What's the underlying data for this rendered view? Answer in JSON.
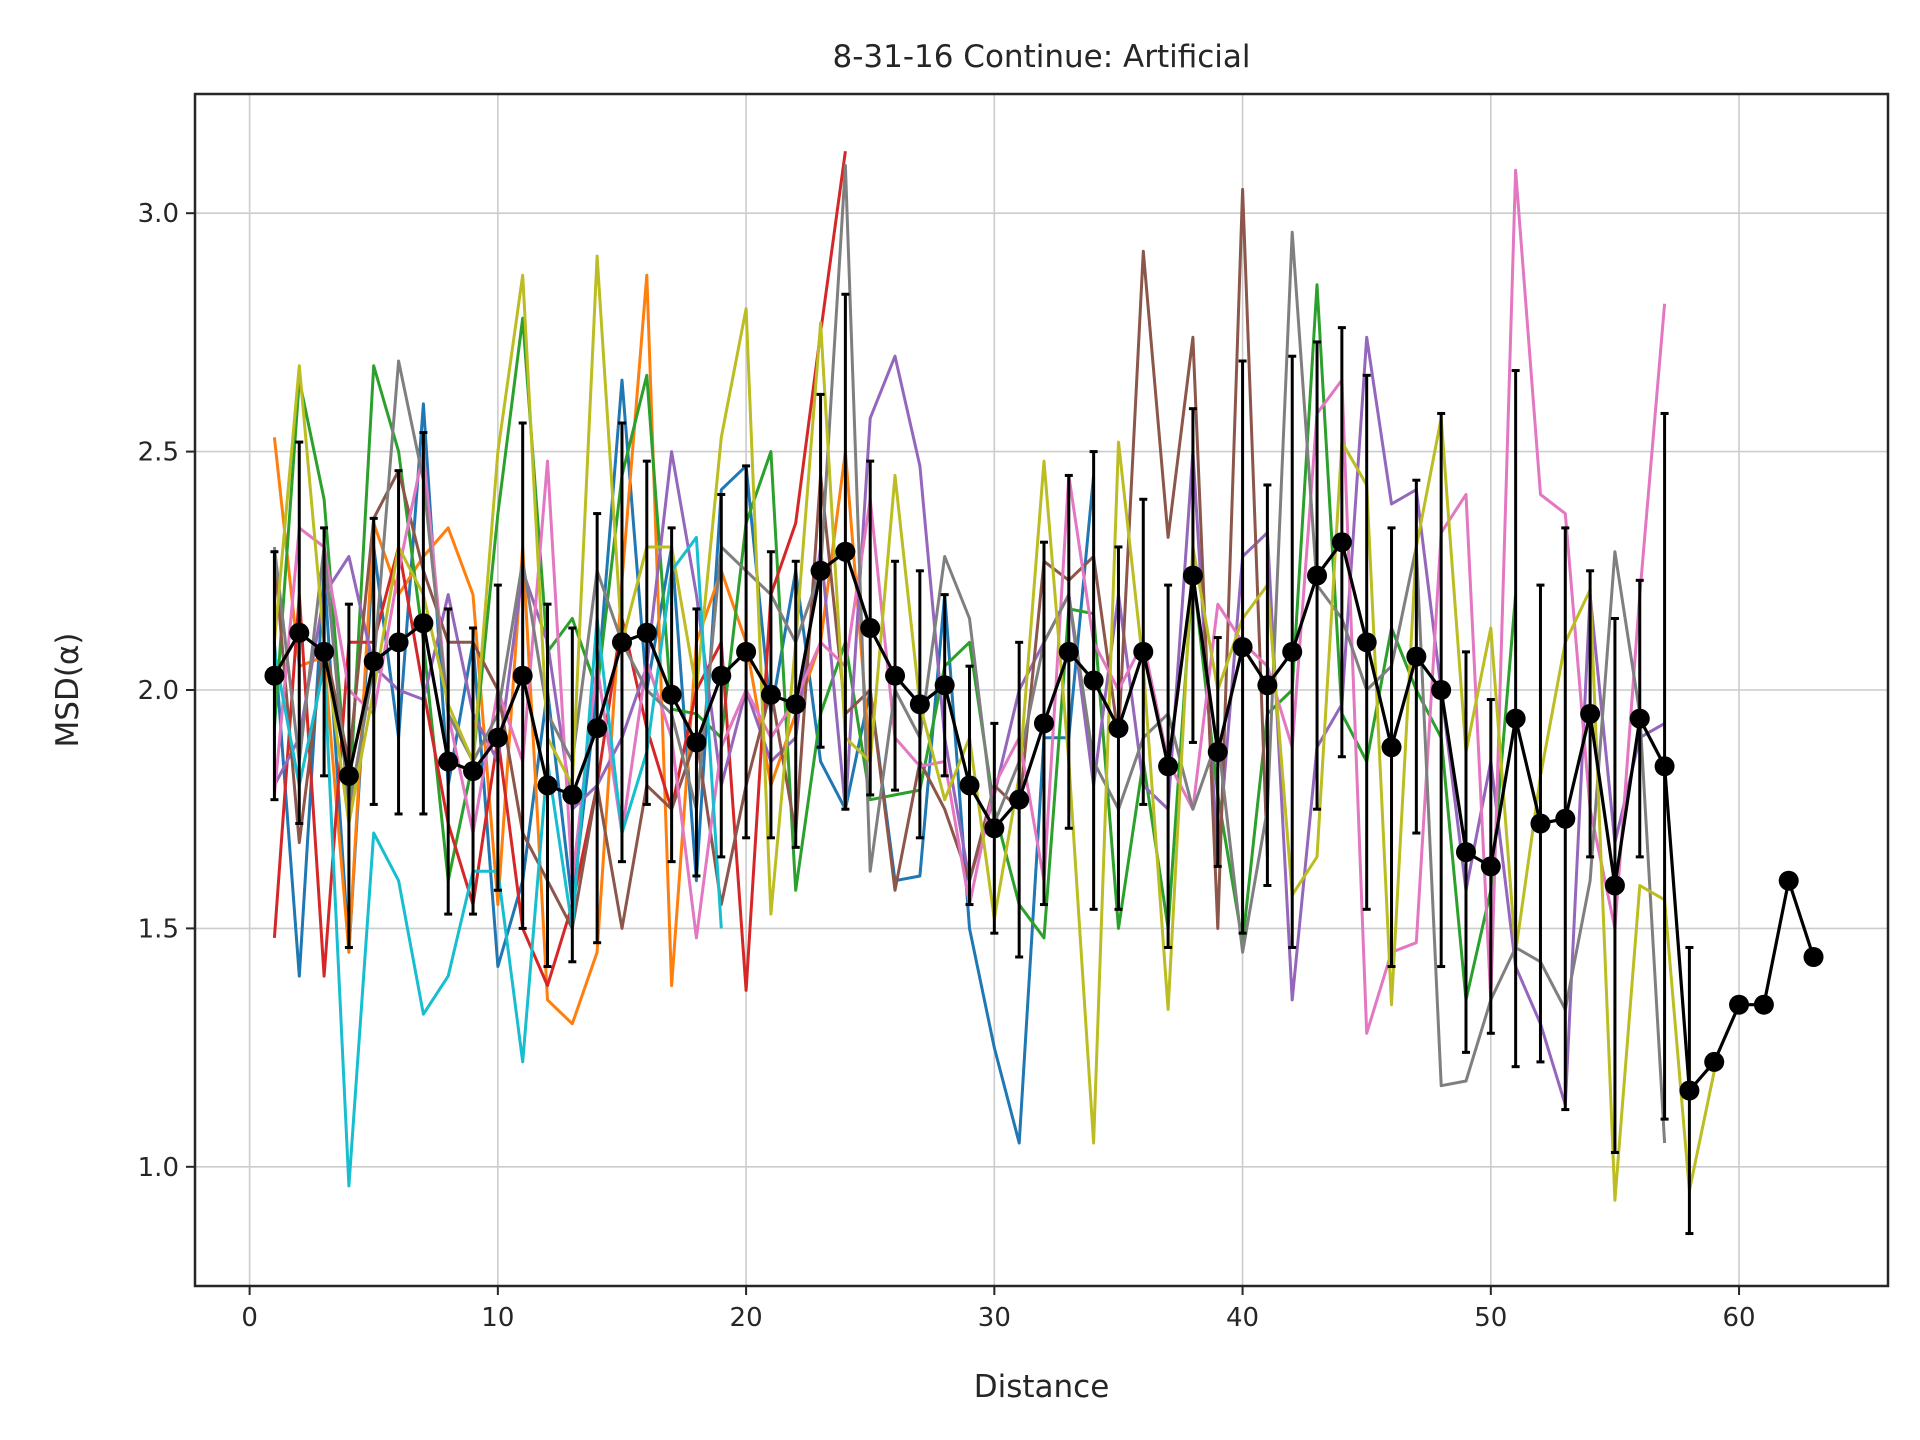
{
  "chart_data": {
    "type": "line",
    "title": "8-31-16 Continue: Artificial",
    "xlabel": "Distance",
    "ylabel": "MSD(α)",
    "xlim": [
      -2.2,
      66
    ],
    "ylim": [
      0.75,
      3.25
    ],
    "xticks": [
      0,
      10,
      20,
      30,
      40,
      50,
      60
    ],
    "xtick_labels": [
      "0",
      "10",
      "20",
      "30",
      "40",
      "50",
      "60"
    ],
    "yticks": [
      1.0,
      1.5,
      2.0,
      2.5,
      3.0
    ],
    "ytick_labels": [
      "1.0",
      "1.5",
      "2.0",
      "2.5",
      "3.0"
    ],
    "grid": true,
    "legend": "none",
    "series": [
      {
        "color": "#1f77b4",
        "x": [
          1,
          2,
          3,
          4,
          5,
          6,
          7,
          8,
          9,
          10,
          11,
          12,
          13,
          14,
          15,
          16,
          17,
          18,
          19,
          20,
          21,
          22,
          23,
          24,
          25,
          26,
          27,
          28,
          29,
          30,
          31,
          32,
          33,
          34
        ],
        "y": [
          2.1,
          1.4,
          2.25,
          1.45,
          2.3,
          1.9,
          2.6,
          1.8,
          2.1,
          1.42,
          1.6,
          2.0,
          1.55,
          2.0,
          2.65,
          2.0,
          2.3,
          1.6,
          2.42,
          2.47,
          1.95,
          2.25,
          1.85,
          1.75,
          2.0,
          1.6,
          1.61,
          2.2,
          1.5,
          1.25,
          1.05,
          1.9,
          1.9,
          2.45
        ]
      },
      {
        "color": "#ff7f0e",
        "x": [
          1,
          2,
          3,
          4,
          5,
          6,
          7,
          8,
          9,
          10,
          11,
          12,
          13,
          14,
          15,
          16,
          17,
          18,
          19,
          20,
          21,
          22,
          23,
          24,
          25
        ],
        "y": [
          2.53,
          2.05,
          2.07,
          1.45,
          2.35,
          2.2,
          2.28,
          2.34,
          2.2,
          1.55,
          2.3,
          1.35,
          1.3,
          1.45,
          2.23,
          2.87,
          1.38,
          2.1,
          2.25,
          2.1,
          1.8,
          1.95,
          2.1,
          2.5,
          1.85
        ]
      },
      {
        "color": "#2ca02c",
        "x": [
          1,
          2,
          3,
          4,
          5,
          6,
          7,
          8,
          9,
          10,
          11,
          12,
          13,
          14,
          15,
          16,
          17,
          18,
          19,
          20,
          21,
          22,
          23,
          24,
          25,
          26,
          27,
          28,
          29,
          30,
          31,
          32,
          33,
          34,
          35,
          36,
          37,
          38,
          39,
          40,
          41,
          42,
          43,
          44,
          45,
          46,
          47,
          48,
          49,
          50,
          51
        ],
        "y": [
          1.92,
          2.65,
          2.4,
          1.75,
          2.68,
          2.5,
          2.1,
          1.6,
          1.85,
          2.37,
          2.78,
          2.08,
          2.15,
          2.0,
          2.45,
          2.66,
          1.96,
          1.95,
          1.9,
          2.35,
          2.5,
          1.58,
          1.95,
          2.1,
          1.77,
          1.78,
          1.79,
          2.05,
          2.1,
          1.75,
          1.55,
          1.48,
          2.17,
          2.16,
          1.5,
          1.85,
          1.5,
          2.25,
          1.78,
          1.47,
          1.95,
          2.0,
          2.85,
          1.95,
          1.85,
          2.13,
          2.0,
          1.9,
          1.35,
          1.58,
          2.2
        ]
      },
      {
        "color": "#d62728",
        "x": [
          1,
          2,
          3,
          4,
          5,
          6,
          7,
          8,
          9,
          10,
          11,
          12,
          13,
          14,
          15,
          16,
          17,
          18,
          19,
          20,
          21,
          22,
          23,
          24
        ],
        "y": [
          1.48,
          2.2,
          1.4,
          2.1,
          2.1,
          2.3,
          2.0,
          1.72,
          1.55,
          1.9,
          1.5,
          1.38,
          1.55,
          1.8,
          2.15,
          1.92,
          1.75,
          2.0,
          2.1,
          1.37,
          2.2,
          2.35,
          2.75,
          3.13
        ]
      },
      {
        "color": "#9467bd",
        "x": [
          1,
          2,
          3,
          4,
          5,
          6,
          7,
          8,
          9,
          10,
          11,
          12,
          13,
          14,
          15,
          16,
          17,
          18,
          19,
          20,
          21,
          22,
          23,
          24,
          25,
          26,
          27,
          28,
          29,
          30,
          31,
          32,
          33,
          34,
          35,
          36,
          37,
          38,
          39,
          40,
          41,
          42,
          43,
          44,
          45,
          46,
          47,
          48,
          49,
          50,
          51,
          52,
          53,
          54,
          55,
          56,
          57
        ],
        "y": [
          1.8,
          1.9,
          2.2,
          2.28,
          2.05,
          2.0,
          1.98,
          2.2,
          1.95,
          1.85,
          2.25,
          2.1,
          1.75,
          1.8,
          1.9,
          2.05,
          2.5,
          2.2,
          1.8,
          2.0,
          1.85,
          1.9,
          2.3,
          1.75,
          2.57,
          2.7,
          2.47,
          1.9,
          1.6,
          1.78,
          2.0,
          2.1,
          2.2,
          1.8,
          2.2,
          1.8,
          1.75,
          2.5,
          1.65,
          2.28,
          2.33,
          1.35,
          1.88,
          1.97,
          2.74,
          2.39,
          2.42,
          2.0,
          1.58,
          1.85,
          1.42,
          1.3,
          1.13,
          2.2,
          1.68,
          1.9,
          1.93
        ]
      },
      {
        "color": "#8c564b",
        "x": [
          1,
          2,
          3,
          4,
          5,
          6,
          7,
          8,
          9,
          10,
          11,
          12,
          13,
          14,
          15,
          16,
          17,
          18,
          19,
          20,
          21,
          22,
          23,
          24,
          25,
          26,
          27,
          28,
          29,
          30,
          31,
          32,
          33,
          34,
          35,
          36,
          37,
          38,
          39,
          40,
          41
        ],
        "y": [
          2.28,
          1.68,
          2.1,
          1.85,
          2.36,
          2.46,
          2.25,
          2.1,
          2.1,
          2.0,
          1.7,
          1.6,
          1.5,
          1.8,
          1.5,
          1.8,
          1.75,
          1.9,
          1.55,
          1.8,
          2.0,
          1.7,
          2.45,
          1.95,
          2.0,
          1.58,
          1.85,
          1.75,
          1.6,
          1.8,
          1.75,
          2.27,
          2.23,
          2.28,
          1.9,
          2.92,
          2.32,
          2.74,
          1.5,
          3.05,
          1.65
        ]
      },
      {
        "color": "#e377c2",
        "x": [
          1,
          2,
          3,
          4,
          5,
          6,
          7,
          8,
          9,
          10,
          11,
          12,
          13,
          14,
          15,
          16,
          17,
          18,
          19,
          20,
          21,
          22,
          23,
          24,
          25,
          26,
          27,
          28,
          29,
          30,
          31,
          32,
          33,
          34,
          35,
          36,
          37,
          38,
          39,
          40,
          41,
          42,
          43,
          44,
          45,
          46,
          47,
          48,
          49,
          50,
          51,
          52,
          53,
          54,
          55,
          56,
          57
        ],
        "y": [
          1.78,
          2.34,
          2.3,
          2.0,
          1.95,
          2.25,
          2.5,
          1.95,
          1.7,
          2.0,
          1.85,
          2.48,
          1.6,
          2.05,
          1.7,
          2.06,
          1.9,
          1.48,
          1.88,
          2.0,
          1.9,
          1.98,
          2.1,
          2.05,
          2.4,
          1.9,
          1.84,
          1.85,
          1.55,
          1.8,
          1.9,
          1.6,
          2.45,
          2.1,
          2.0,
          2.1,
          1.85,
          1.75,
          2.18,
          2.1,
          2.05,
          1.88,
          2.58,
          2.65,
          1.28,
          1.45,
          1.47,
          2.33,
          2.41,
          1.35,
          3.09,
          2.41,
          2.37,
          1.75,
          1.5,
          2.2,
          2.81
        ]
      },
      {
        "color": "#7f7f7f",
        "x": [
          1,
          2,
          3,
          4,
          5,
          6,
          7,
          8,
          9,
          10,
          11,
          12,
          13,
          14,
          15,
          16,
          17,
          18,
          19,
          20,
          21,
          22,
          23,
          24,
          25,
          26,
          27,
          28,
          29,
          30,
          31,
          32,
          33,
          34,
          35,
          36,
          37,
          38,
          39,
          40,
          41,
          42,
          43,
          44,
          45,
          46,
          47,
          48,
          49,
          50,
          51,
          52,
          53,
          54,
          55,
          56,
          57
        ],
        "y": [
          2.3,
          1.85,
          2.3,
          1.75,
          2.05,
          2.69,
          2.44,
          1.95,
          1.85,
          1.95,
          2.27,
          1.95,
          1.85,
          2.25,
          2.1,
          2.0,
          1.95,
          1.75,
          2.3,
          2.25,
          2.2,
          2.1,
          2.25,
          3.1,
          1.62,
          2.0,
          1.9,
          2.28,
          2.15,
          1.72,
          1.85,
          2.1,
          2.2,
          1.85,
          1.75,
          1.9,
          1.95,
          1.75,
          1.9,
          1.45,
          1.75,
          2.96,
          2.22,
          2.15,
          2.0,
          2.05,
          2.3,
          1.17,
          1.18,
          1.35,
          1.46,
          1.43,
          1.33,
          1.6,
          2.29,
          1.95,
          1.05
        ]
      },
      {
        "color": "#bcbd22",
        "x": [
          1,
          2,
          3,
          4,
          5,
          6,
          7,
          8,
          9,
          10,
          11,
          12,
          13,
          14,
          15,
          16,
          17,
          18,
          19,
          20,
          21,
          22,
          23,
          24,
          25,
          26,
          27,
          28,
          29,
          30,
          31,
          32,
          33,
          34,
          35,
          36,
          37,
          38,
          39,
          40,
          41,
          42,
          43,
          44,
          45,
          46,
          47,
          48,
          49,
          50,
          51,
          52,
          53,
          54,
          55,
          56,
          57,
          58,
          59
        ],
        "y": [
          2.1,
          2.68,
          2.1,
          1.72,
          2.0,
          2.3,
          2.2,
          1.97,
          1.85,
          2.5,
          2.87,
          1.9,
          1.8,
          2.91,
          2.1,
          2.3,
          2.3,
          2.0,
          2.53,
          2.8,
          1.53,
          2.1,
          2.77,
          1.9,
          1.85,
          2.45,
          1.97,
          1.77,
          1.9,
          1.52,
          1.82,
          2.48,
          1.85,
          1.05,
          2.52,
          2.05,
          1.33,
          2.3,
          2.0,
          2.15,
          2.22,
          1.57,
          1.65,
          2.52,
          2.43,
          1.34,
          2.3,
          2.57,
          1.87,
          2.13,
          1.45,
          1.82,
          2.1,
          2.21,
          0.93,
          1.59,
          1.56,
          0.95,
          1.2
        ]
      },
      {
        "color": "#17becf",
        "x": [
          1,
          2,
          3,
          4,
          5,
          6,
          7,
          8,
          9,
          10,
          11,
          12,
          13,
          14,
          15,
          16,
          17,
          18,
          19
        ],
        "y": [
          2.08,
          1.8,
          2.05,
          0.96,
          1.7,
          1.6,
          1.32,
          1.4,
          1.62,
          1.62,
          1.22,
          1.85,
          1.5,
          2.15,
          1.7,
          1.87,
          2.25,
          2.32,
          1.5
        ]
      }
    ],
    "mean_series": {
      "color": "#000000",
      "x": [
        1,
        2,
        3,
        4,
        5,
        6,
        7,
        8,
        9,
        10,
        11,
        12,
        13,
        14,
        15,
        16,
        17,
        18,
        19,
        20,
        21,
        22,
        23,
        24,
        25,
        26,
        27,
        28,
        29,
        30,
        31,
        32,
        33,
        34,
        35,
        36,
        37,
        38,
        39,
        40,
        41,
        42,
        43,
        44,
        45,
        46,
        47,
        48,
        49,
        50,
        51,
        52,
        53,
        54,
        55,
        56,
        57,
        58,
        59,
        60,
        61,
        62,
        63
      ],
      "y": [
        2.03,
        2.12,
        2.08,
        1.82,
        2.06,
        2.1,
        2.14,
        1.85,
        1.83,
        1.9,
        2.03,
        1.8,
        1.78,
        1.92,
        2.1,
        2.12,
        1.99,
        1.89,
        2.03,
        2.08,
        1.99,
        1.97,
        2.25,
        2.29,
        2.13,
        2.03,
        1.97,
        2.01,
        1.8,
        1.71,
        1.77,
        1.93,
        2.08,
        2.02,
        1.92,
        2.08,
        1.84,
        2.24,
        1.87,
        2.09,
        2.01,
        2.08,
        2.24,
        2.31,
        2.1,
        1.88,
        2.07,
        2.0,
        1.66,
        1.63,
        1.94,
        1.72,
        1.73,
        1.95,
        1.59,
        1.94,
        1.84,
        1.16,
        1.22,
        1.34,
        1.34,
        1.6,
        1.44
      ],
      "yerr": [
        0.26,
        0.4,
        0.26,
        0.36,
        0.3,
        0.36,
        0.4,
        0.32,
        0.3,
        0.32,
        0.53,
        0.38,
        0.35,
        0.45,
        0.46,
        0.36,
        0.35,
        0.28,
        0.38,
        0.39,
        0.3,
        0.3,
        0.37,
        0.54,
        0.35,
        0.24,
        0.28,
        0.19,
        0.25,
        0.22,
        0.33,
        0.38,
        0.37,
        0.48,
        0.38,
        0.32,
        0.38,
        0.35,
        0.24,
        0.6,
        0.42,
        0.62,
        0.49,
        0.45,
        0.56,
        0.46,
        0.37,
        0.58,
        0.42,
        0.35,
        0.73,
        0.5,
        0.61,
        0.3,
        0.56,
        0.29,
        0.74,
        0.3,
        0,
        0,
        0,
        0,
        0
      ]
    }
  }
}
